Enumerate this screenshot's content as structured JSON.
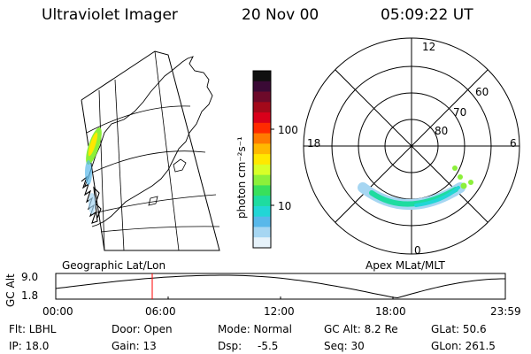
{
  "header": {
    "instrument": "Ultraviolet Imager",
    "date": "20 Nov 00",
    "time": "05:09:22 UT"
  },
  "colorbar": {
    "unit_label": "photon cm⁻²s⁻¹",
    "ticks": [
      "100",
      "10"
    ],
    "colors": [
      "#101010",
      "#3a0a35",
      "#6d0a2a",
      "#a3091a",
      "#d9001a",
      "#ff2a00",
      "#ff7a00",
      "#ffb800",
      "#ffe800",
      "#d8ff28",
      "#8cf03a",
      "#38e05c",
      "#1edca0",
      "#22d6d6",
      "#58b8ea",
      "#a6d6f2",
      "#e6f2fa"
    ]
  },
  "left_panel": {
    "label": "Geographic Lat/Lon"
  },
  "right_panel": {
    "label": "Apex MLat/MLT",
    "mlt_labels": {
      "top": "12",
      "left": "18",
      "right": "6",
      "bottom": "0"
    },
    "lat_labels": [
      "60",
      "70",
      "80"
    ]
  },
  "altitude_plot": {
    "ylabel": "GC Alt",
    "yticks": [
      "9.0",
      "1.8"
    ],
    "xticks": [
      "00:00",
      "06:00",
      "12:00",
      "18:00",
      "23:59"
    ],
    "marker_hour": 5.15
  },
  "info": {
    "filter": "Flt: LBHL",
    "ip": "IP: 18.0",
    "door": "Door: Open",
    "gain": "Gain: 13",
    "mode": "Mode: Normal",
    "dsp_label": "Dsp:",
    "dsp_value": "-5.5",
    "gc_alt": "GC Alt: 8.2 Re",
    "seq": "Seq: 30",
    "glat": "GLat: 50.6",
    "glon": "GLon: 261.5"
  }
}
